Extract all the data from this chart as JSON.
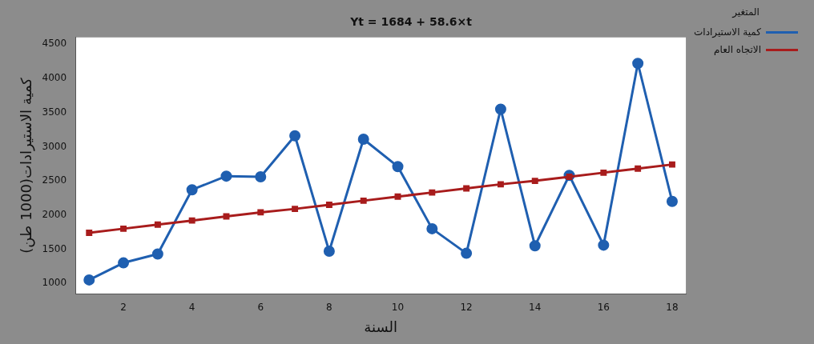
{
  "chart_data": {
    "type": "line",
    "title": "Yt = 1684 + 58.6×t",
    "xlabel": "السنة",
    "ylabel": "كمية الاستيرادات(1000 طن)",
    "legend_title": "المتغير",
    "x": [
      1,
      2,
      3,
      4,
      5,
      6,
      7,
      8,
      9,
      10,
      11,
      12,
      13,
      14,
      15,
      16,
      17,
      18
    ],
    "series": [
      {
        "name": "كمية الاستيرادات",
        "color": "#1f5fb0",
        "marker": "circle",
        "values": [
          1050,
          1300,
          1430,
          2370,
          2570,
          2560,
          3160,
          1470,
          3110,
          2710,
          1800,
          1440,
          3550,
          1550,
          2580,
          1560,
          4220,
          2200
        ]
      },
      {
        "name": "الاتجاه العام",
        "color": "#a81c1c",
        "marker": "square",
        "values": [
          1740,
          1800,
          1860,
          1920,
          1980,
          2040,
          2090,
          2150,
          2210,
          2270,
          2330,
          2390,
          2450,
          2500,
          2560,
          2620,
          2680,
          2740
        ]
      }
    ],
    "xlim": [
      0.6,
      18.4
    ],
    "xticks": [
      2,
      4,
      6,
      8,
      10,
      12,
      14,
      16,
      18
    ],
    "ylim": [
      850,
      4600
    ],
    "yticks": [
      1000,
      1500,
      2000,
      2500,
      3000,
      3500,
      4000,
      4500
    ],
    "grid": false,
    "legend": "top right",
    "line_style": "solid"
  }
}
